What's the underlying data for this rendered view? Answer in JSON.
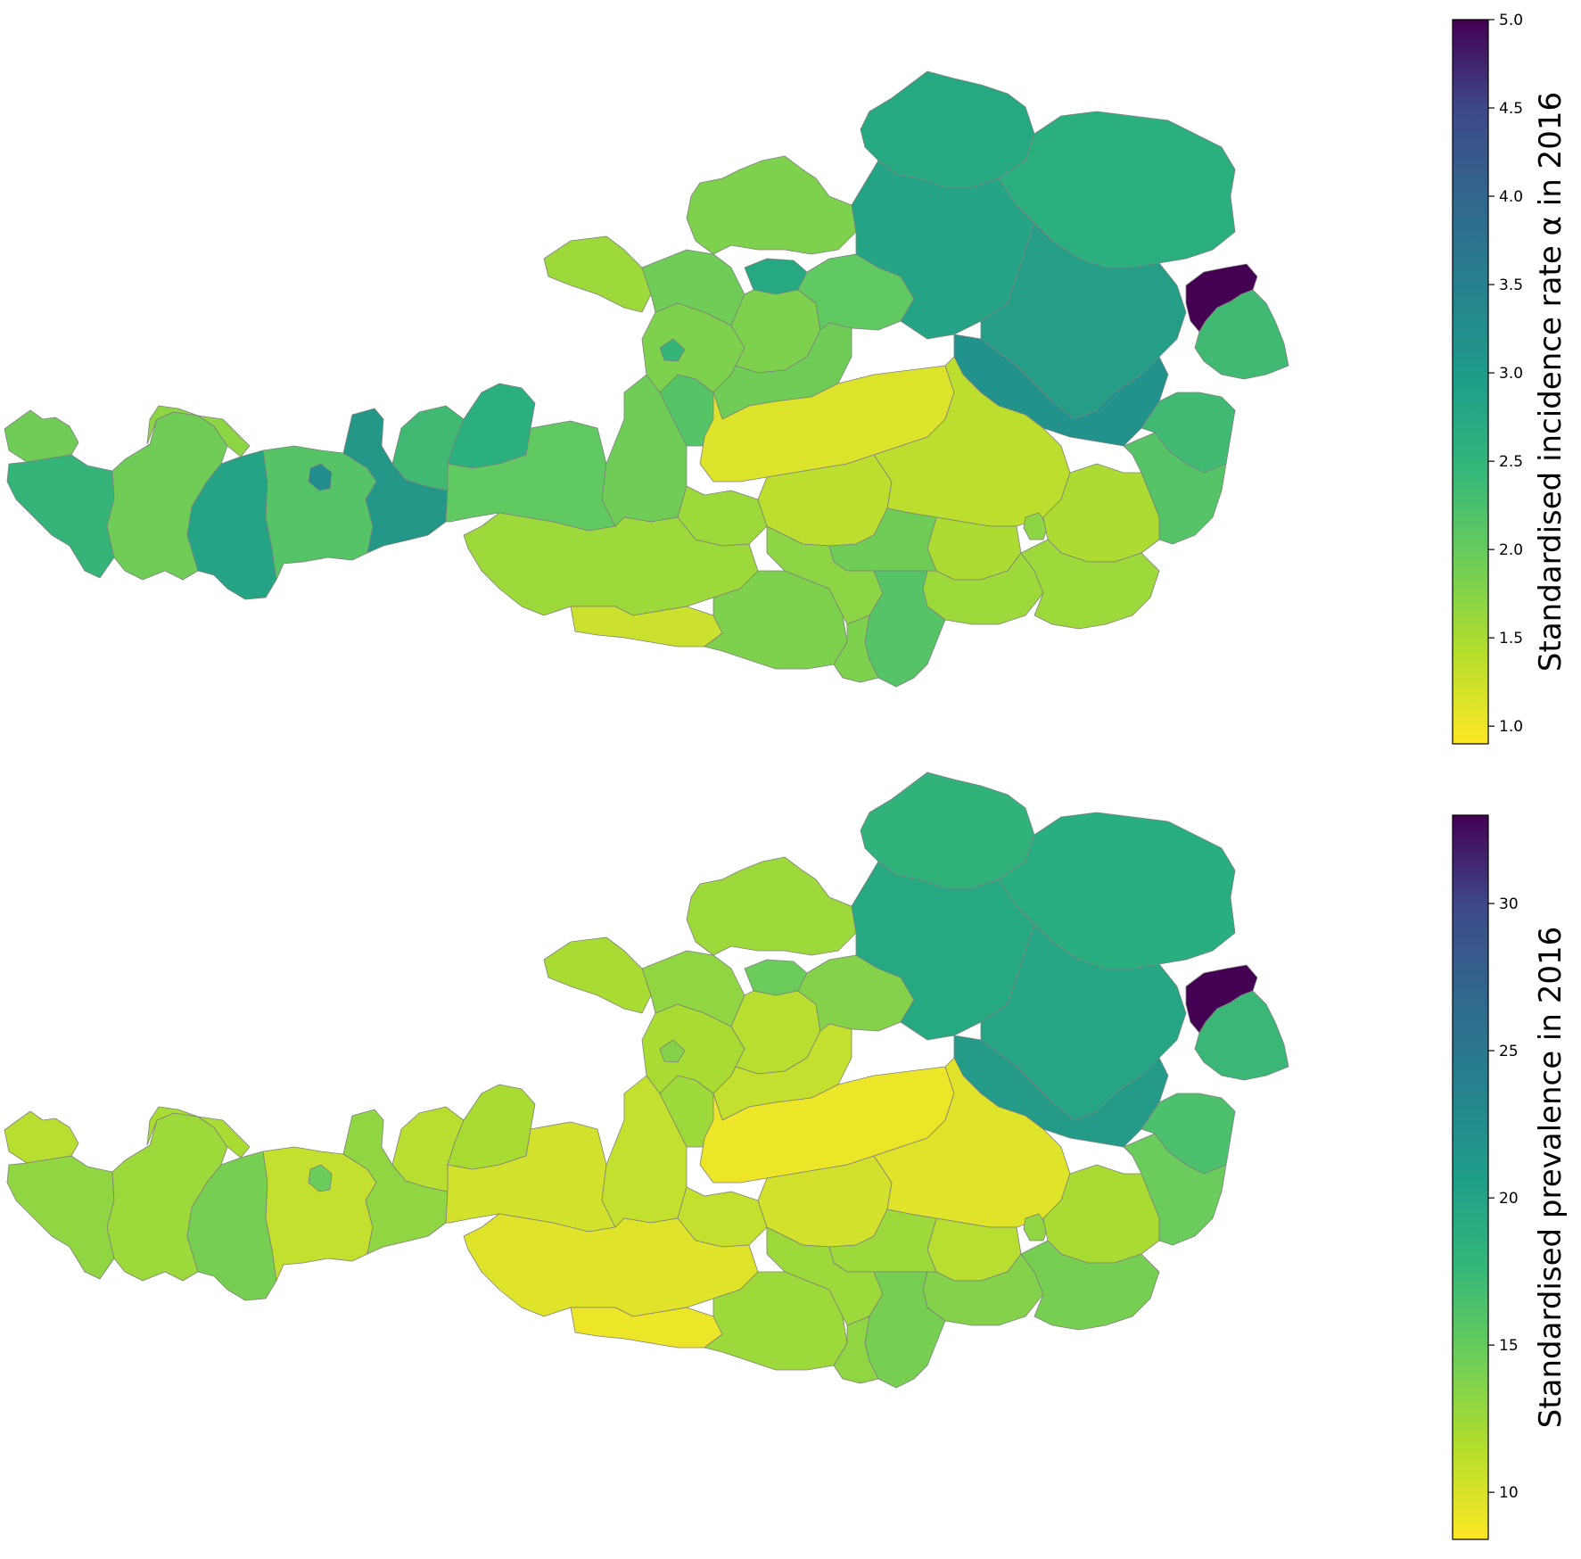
{
  "panels": [
    {
      "id": "incidence",
      "colorbar": {
        "label": "Standardised incidence rate α in 2016",
        "min": 0.9,
        "max": 5.0,
        "ticks": [
          1.0,
          1.5,
          2.0,
          2.5,
          3.0,
          3.5,
          4.0,
          4.5,
          5.0
        ],
        "tick_labels": [
          "1.0",
          "1.5",
          "2.0",
          "2.5",
          "3.0",
          "3.5",
          "4.0",
          "4.5",
          "5.0"
        ]
      },
      "values": {
        "vorarlberg_w": 1.8,
        "vorarlberg_e": 2.3,
        "tirol_landeck": 1.8,
        "tirol_imst": 2.6,
        "tirol_innsbruck_land": 2.0,
        "tirol_innsbruck_city": 3.0,
        "tirol_schwaz": 2.8,
        "tirol_kufstein": 2.2,
        "tirol_kitzbuehel": 2.4,
        "tirol_lienz": 1.6,
        "salzburg_pinzgau": 1.9,
        "salzburg_pongau": 1.8,
        "salzburg_lungau": 1.5,
        "salzburg_tennengau": 2.0,
        "salzburg_flachgau": 1.7,
        "salzburg_city": 2.3,
        "ooe_innviertel": 1.5,
        "ooe_hausruck": 1.8,
        "ooe_muehlviertel": 1.7,
        "ooe_linz": 2.5,
        "ooe_traunviertel": 1.7,
        "ooe_steyr": 1.9,
        "ooe_salzkammergut": 1.8,
        "noe_waldviertel": 2.5,
        "noe_weinviertel": 2.4,
        "noe_mostviertel": 2.6,
        "noe_industrieviertel": 2.7,
        "noe_central": 2.9,
        "wien": 5.0,
        "bgld_north": 2.2,
        "bgld_central": 2.2,
        "bgld_south": 2.0,
        "stmk_liezen": 1.1,
        "stmk_murtal": 1.3,
        "stmk_hochsteiermark": 1.3,
        "stmk_graz_umgebung": 1.4,
        "stmk_graz": 1.6,
        "stmk_oststeiermark": 1.4,
        "stmk_west": 1.5,
        "stmk_sued": 1.5,
        "stmk_murau": 1.8,
        "ktn_spittal": 1.5,
        "ktn_villach": 1.2,
        "ktn_klagenfurt": 1.7,
        "ktn_wolfsberg": 2.0,
        "ktn_stveit": 1.6,
        "ktn_voelkermarkt": 1.7
      }
    },
    {
      "id": "prevalence",
      "colorbar": {
        "label": "Standardised prevalence in 2016",
        "min": 8.4,
        "max": 33.0,
        "ticks": [
          10,
          15,
          20,
          25,
          30
        ],
        "tick_labels": [
          "10",
          "15",
          "20",
          "25",
          "30"
        ]
      },
      "values": {
        "vorarlberg_w": 11.0,
        "vorarlberg_e": 12.5,
        "tirol_landeck": 12.0,
        "tirol_imst": 13.5,
        "tirol_innsbruck_land": 10.5,
        "tirol_innsbruck_city": 14.0,
        "tirol_schwaz": 12.5,
        "tirol_kufstein": 11.0,
        "tirol_kitzbuehel": 11.5,
        "tirol_lienz": 11.5,
        "salzburg_pinzgau": 10.0,
        "salzburg_pongau": 10.5,
        "salzburg_lungau": 10.5,
        "salzburg_tennengau": 12.0,
        "salzburg_flachgau": 11.5,
        "salzburg_city": 13.0,
        "ooe_innviertel": 11.5,
        "ooe_hausruck": 12.5,
        "ooe_muehlviertel": 12.0,
        "ooe_linz": 14.0,
        "ooe_traunviertel": 11.0,
        "ooe_steyr": 13.0,
        "ooe_salzkammergut": 10.5,
        "noe_waldviertel": 17.0,
        "noe_weinviertel": 17.5,
        "noe_mostviertel": 18.0,
        "noe_industrieviertel": 18.5,
        "noe_central": 19.5,
        "wien": 33.0,
        "bgld_north": 16.5,
        "bgld_central": 15.5,
        "bgld_south": 14.0,
        "stmk_liezen": 9.0,
        "stmk_murtal": 10.0,
        "stmk_hochsteiermark": 9.5,
        "stmk_graz_umgebung": 11.0,
        "stmk_graz": 12.5,
        "stmk_oststeiermark": 11.5,
        "stmk_west": 13.0,
        "stmk_sued": 13.5,
        "stmk_murau": 12.0,
        "ktn_spittal": 9.5,
        "ktn_villach": 9.0,
        "ktn_klagenfurt": 12.0,
        "ktn_wolfsberg": 13.5,
        "ktn_stveit": 12.0,
        "ktn_voelkermarkt": 12.5
      }
    }
  ],
  "colormap": "viridis_reversed"
}
